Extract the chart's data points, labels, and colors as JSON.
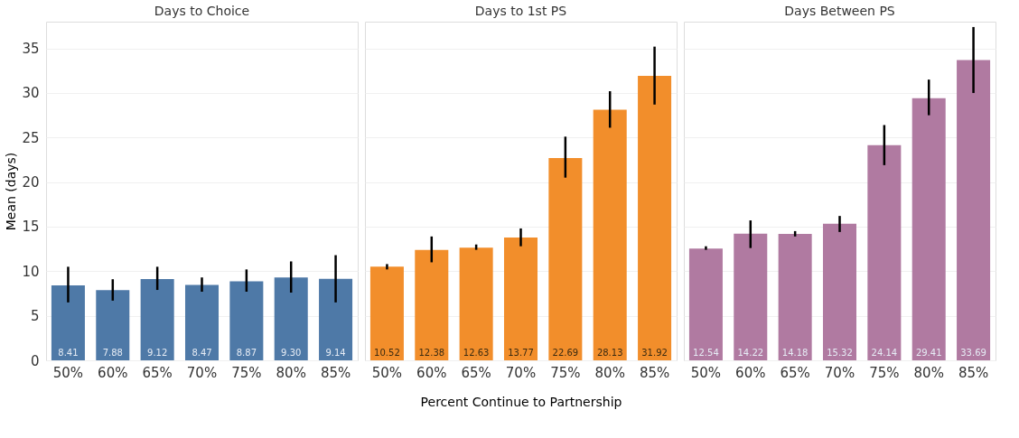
{
  "chart_data": [
    {
      "type": "bar",
      "title": "Days to Choice",
      "ylabel": "Mean (days)",
      "categories": [
        "50%",
        "60%",
        "65%",
        "70%",
        "75%",
        "80%",
        "85%"
      ],
      "color": "#4e79a7",
      "values": [
        8.41,
        7.88,
        9.12,
        8.47,
        8.87,
        9.3,
        9.14
      ],
      "errors": [
        [
          6.5,
          10.5
        ],
        [
          6.7,
          9.1
        ],
        [
          7.9,
          10.5
        ],
        [
          7.7,
          9.3
        ],
        [
          7.7,
          10.2
        ],
        [
          7.6,
          11.1
        ],
        [
          6.5,
          11.8
        ]
      ],
      "value_labels": [
        "8.41",
        "7.88",
        "9.12",
        "8.47",
        "8.87",
        "9.30",
        "9.14"
      ],
      "ylim": [
        0,
        38
      ],
      "yticks": [
        0,
        5,
        10,
        15,
        20,
        25,
        30,
        35
      ],
      "grid": "y"
    },
    {
      "type": "bar",
      "title": "Days to 1st PS",
      "xlabel": "Percent Continue to Partnership",
      "categories": [
        "50%",
        "60%",
        "65%",
        "70%",
        "75%",
        "80%",
        "85%"
      ],
      "color": "#f28e2b",
      "values": [
        10.52,
        12.38,
        12.63,
        13.77,
        22.69,
        28.13,
        31.92
      ],
      "errors": [
        [
          10.2,
          10.8
        ],
        [
          11.0,
          13.9
        ],
        [
          12.4,
          13.0
        ],
        [
          12.8,
          14.8
        ],
        [
          20.5,
          25.1
        ],
        [
          26.1,
          30.2
        ],
        [
          28.7,
          35.2
        ]
      ],
      "ylim": [
        0,
        38
      ],
      "yticks": [
        0,
        5,
        10,
        15,
        20,
        25,
        30,
        35
      ],
      "grid": "y",
      "data_labels": true,
      "tick_labels": "x"
    },
    {
      "type": "bar",
      "title": "Days Between PS",
      "categories": [
        "50%",
        "60%",
        "65%",
        "70%",
        "75%",
        "80%",
        "85%"
      ],
      "color": "#b07aa1",
      "values": [
        12.54,
        14.22,
        14.18,
        15.32,
        24.14,
        29.41,
        33.69
      ],
      "errors": [
        [
          12.4,
          12.8
        ],
        [
          12.6,
          15.7
        ],
        [
          13.9,
          14.5
        ],
        [
          14.4,
          16.2
        ],
        [
          21.9,
          26.4
        ],
        [
          27.5,
          31.5
        ],
        [
          30.0,
          37.4
        ]
      ],
      "ylim": [
        0,
        38
      ],
      "yticks": [
        0,
        5,
        10,
        15,
        20,
        25,
        30,
        35
      ],
      "grid": "y",
      "data_labels": true,
      "tick_labels": "x"
    }
  ]
}
